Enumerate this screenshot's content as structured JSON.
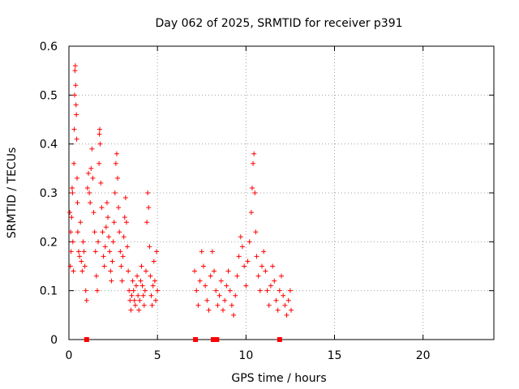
{
  "chart_data": {
    "type": "scatter",
    "title": "Day 062 of 2025, SRMTID for receiver p391",
    "xlabel": "GPS time / hours",
    "ylabel": "SRMTID / TECUs",
    "xlim": [
      0,
      24
    ],
    "ylim": [
      0,
      0.6
    ],
    "xticks": [
      0,
      5,
      10,
      15,
      20
    ],
    "xtick_labels": [
      "0",
      "5",
      "10",
      "15",
      "20"
    ],
    "yticks": [
      0,
      0.1,
      0.2,
      0.3,
      0.4,
      0.5,
      0.6
    ],
    "ytick_labels": [
      "0",
      "0.1",
      "0.2",
      "0.3",
      "0.4",
      "0.5",
      "0.6"
    ],
    "grid": true,
    "marker": "plus",
    "color": "#ff0000",
    "series": [
      {
        "name": "SRMTID",
        "points": [
          [
            0.05,
            0.26
          ],
          [
            0.08,
            0.15
          ],
          [
            0.1,
            0.22
          ],
          [
            0.12,
            0.18
          ],
          [
            0.15,
            0.25
          ],
          [
            0.18,
            0.31
          ],
          [
            0.2,
            0.3
          ],
          [
            0.22,
            0.2
          ],
          [
            0.25,
            0.14
          ],
          [
            0.28,
            0.36
          ],
          [
            0.3,
            0.43
          ],
          [
            0.32,
            0.5
          ],
          [
            0.34,
            0.55
          ],
          [
            0.36,
            0.56
          ],
          [
            0.38,
            0.52
          ],
          [
            0.4,
            0.48
          ],
          [
            0.42,
            0.46
          ],
          [
            0.44,
            0.41
          ],
          [
            0.46,
            0.33
          ],
          [
            0.48,
            0.28
          ],
          [
            0.5,
            0.22
          ],
          [
            0.55,
            0.18
          ],
          [
            0.6,
            0.17
          ],
          [
            0.65,
            0.24
          ],
          [
            0.7,
            0.16
          ],
          [
            0.75,
            0.14
          ],
          [
            0.8,
            0.2
          ],
          [
            0.85,
            0.18
          ],
          [
            0.9,
            0.15
          ],
          [
            0.95,
            0.1
          ],
          [
            1.0,
            0.08
          ],
          [
            1.05,
            0.31
          ],
          [
            1.1,
            0.34
          ],
          [
            1.15,
            0.3
          ],
          [
            1.2,
            0.28
          ],
          [
            1.25,
            0.35
          ],
          [
            1.3,
            0.39
          ],
          [
            1.35,
            0.33
          ],
          [
            1.4,
            0.26
          ],
          [
            1.45,
            0.22
          ],
          [
            1.5,
            0.18
          ],
          [
            1.55,
            0.13
          ],
          [
            1.6,
            0.1
          ],
          [
            1.65,
            0.2
          ],
          [
            1.7,
            0.36
          ],
          [
            1.72,
            0.42
          ],
          [
            1.74,
            0.43
          ],
          [
            1.76,
            0.4
          ],
          [
            1.8,
            0.32
          ],
          [
            1.85,
            0.27
          ],
          [
            1.9,
            0.22
          ],
          [
            1.95,
            0.17
          ],
          [
            2.0,
            0.15
          ],
          [
            2.05,
            0.19
          ],
          [
            2.1,
            0.23
          ],
          [
            2.15,
            0.28
          ],
          [
            2.2,
            0.25
          ],
          [
            2.25,
            0.21
          ],
          [
            2.3,
            0.18
          ],
          [
            2.35,
            0.14
          ],
          [
            2.4,
            0.12
          ],
          [
            2.45,
            0.16
          ],
          [
            2.5,
            0.2
          ],
          [
            2.55,
            0.24
          ],
          [
            2.6,
            0.3
          ],
          [
            2.65,
            0.36
          ],
          [
            2.7,
            0.38
          ],
          [
            2.75,
            0.33
          ],
          [
            2.8,
            0.27
          ],
          [
            2.85,
            0.22
          ],
          [
            2.9,
            0.18
          ],
          [
            2.95,
            0.15
          ],
          [
            3.0,
            0.12
          ],
          [
            3.05,
            0.17
          ],
          [
            3.1,
            0.21
          ],
          [
            3.15,
            0.25
          ],
          [
            3.2,
            0.29
          ],
          [
            3.25,
            0.24
          ],
          [
            3.3,
            0.19
          ],
          [
            3.35,
            0.14
          ],
          [
            3.4,
            0.1
          ],
          [
            3.45,
            0.08
          ],
          [
            3.5,
            0.06
          ],
          [
            3.55,
            0.09
          ],
          [
            3.6,
            0.12
          ],
          [
            3.65,
            0.1
          ],
          [
            3.7,
            0.08
          ],
          [
            3.75,
            0.07
          ],
          [
            3.8,
            0.11
          ],
          [
            3.85,
            0.13
          ],
          [
            3.9,
            0.09
          ],
          [
            3.95,
            0.06
          ],
          [
            4.0,
            0.08
          ],
          [
            4.05,
            0.12
          ],
          [
            4.1,
            0.15
          ],
          [
            4.15,
            0.11
          ],
          [
            4.2,
            0.09
          ],
          [
            4.25,
            0.07
          ],
          [
            4.3,
            0.1
          ],
          [
            4.35,
            0.14
          ],
          [
            4.4,
            0.24
          ],
          [
            4.45,
            0.3
          ],
          [
            4.5,
            0.27
          ],
          [
            4.55,
            0.19
          ],
          [
            4.6,
            0.13
          ],
          [
            4.65,
            0.09
          ],
          [
            4.7,
            0.07
          ],
          [
            4.75,
            0.11
          ],
          [
            4.8,
            0.16
          ],
          [
            4.85,
            0.12
          ],
          [
            4.9,
            0.08
          ],
          [
            4.95,
            0.18
          ],
          [
            5.0,
            0.1
          ],
          [
            7.1,
            0.14
          ],
          [
            7.2,
            0.1
          ],
          [
            7.3,
            0.07
          ],
          [
            7.4,
            0.12
          ],
          [
            7.5,
            0.18
          ],
          [
            7.6,
            0.15
          ],
          [
            7.7,
            0.11
          ],
          [
            7.8,
            0.08
          ],
          [
            7.9,
            0.06
          ],
          [
            8.0,
            0.13
          ],
          [
            8.1,
            0.18
          ],
          [
            8.2,
            0.14
          ],
          [
            8.3,
            0.1
          ],
          [
            8.4,
            0.07
          ],
          [
            8.5,
            0.09
          ],
          [
            8.6,
            0.12
          ],
          [
            8.7,
            0.06
          ],
          [
            8.8,
            0.08
          ],
          [
            8.9,
            0.11
          ],
          [
            9.0,
            0.14
          ],
          [
            9.1,
            0.1
          ],
          [
            9.2,
            0.07
          ],
          [
            9.3,
            0.05
          ],
          [
            9.4,
            0.09
          ],
          [
            9.5,
            0.13
          ],
          [
            9.6,
            0.17
          ],
          [
            9.7,
            0.21
          ],
          [
            9.8,
            0.19
          ],
          [
            9.9,
            0.15
          ],
          [
            10.0,
            0.11
          ],
          [
            10.1,
            0.16
          ],
          [
            10.2,
            0.2
          ],
          [
            10.3,
            0.26
          ],
          [
            10.35,
            0.31
          ],
          [
            10.4,
            0.36
          ],
          [
            10.45,
            0.38
          ],
          [
            10.5,
            0.3
          ],
          [
            10.55,
            0.22
          ],
          [
            10.6,
            0.17
          ],
          [
            10.7,
            0.13
          ],
          [
            10.8,
            0.1
          ],
          [
            10.9,
            0.15
          ],
          [
            11.0,
            0.18
          ],
          [
            11.1,
            0.14
          ],
          [
            11.2,
            0.1
          ],
          [
            11.3,
            0.07
          ],
          [
            11.4,
            0.11
          ],
          [
            11.5,
            0.15
          ],
          [
            11.6,
            0.12
          ],
          [
            11.7,
            0.08
          ],
          [
            11.8,
            0.06
          ],
          [
            11.9,
            0.1
          ],
          [
            12.0,
            0.13
          ],
          [
            12.1,
            0.09
          ],
          [
            12.2,
            0.07
          ],
          [
            12.3,
            0.05
          ],
          [
            12.4,
            0.08
          ],
          [
            12.5,
            0.1
          ],
          [
            12.55,
            0.06
          ]
        ]
      }
    ],
    "zero_markers": [
      1.0,
      7.15,
      8.15,
      8.35,
      11.9
    ]
  }
}
